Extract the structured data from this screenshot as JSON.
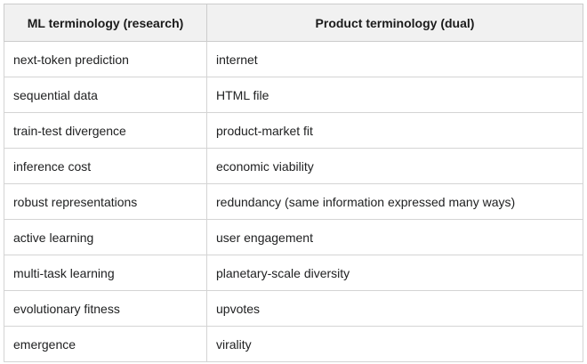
{
  "colors": {
    "header_bg": "#f1f1f1",
    "border": "#cccccc",
    "text": "#202122",
    "row_bg": "#ffffff"
  },
  "table": {
    "headers": [
      {
        "label": "ML terminology (research)"
      },
      {
        "label": "Product terminology (dual)"
      }
    ],
    "rows": [
      {
        "ml": "next-token prediction",
        "product": "internet"
      },
      {
        "ml": "sequential data",
        "product": "HTML file"
      },
      {
        "ml": "train-test divergence",
        "product": "product-market fit"
      },
      {
        "ml": "inference cost",
        "product": "economic viability"
      },
      {
        "ml": "robust representations",
        "product": "redundancy (same information expressed many ways)"
      },
      {
        "ml": "active learning",
        "product": "user engagement"
      },
      {
        "ml": "multi-task learning",
        "product": "planetary-scale diversity"
      },
      {
        "ml": "evolutionary fitness",
        "product": "upvotes"
      },
      {
        "ml": "emergence",
        "product": "virality"
      }
    ]
  }
}
